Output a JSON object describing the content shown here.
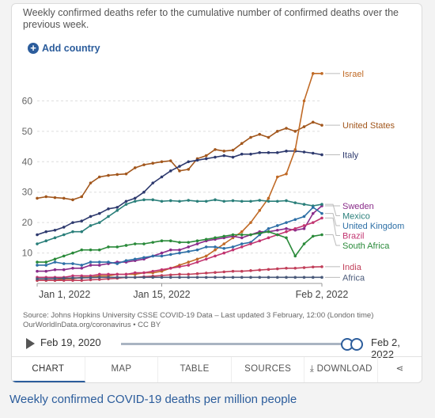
{
  "intro_text": "Weekly confirmed deaths refer to the cumulative number of confirmed deaths over the previous week.",
  "add_country_label": "Add country",
  "source_text": "Source: Johns Hopkins University CSSE COVID-19 Data – Last updated 3 February, 12:00 (London time)",
  "source_url": "OurWorldInData.org/coronavirus • CC BY",
  "timeline": {
    "start_label": "Feb 19, 2020",
    "end_label": "Feb 2, 2022"
  },
  "tabs": [
    {
      "label": "CHART",
      "active": true
    },
    {
      "label": "MAP"
    },
    {
      "label": "TABLE"
    },
    {
      "label": "SOURCES"
    },
    {
      "label": "DOWNLOAD"
    },
    {
      "label": ""
    }
  ],
  "bottom_title": "Weekly confirmed COVID-19 deaths per million people",
  "chart_data": {
    "type": "line",
    "title": "",
    "xlabel": "",
    "ylabel": "",
    "ylim": [
      0,
      70
    ],
    "yticks": [
      10,
      20,
      30,
      40,
      50,
      60
    ],
    "grid": true,
    "x": [
      "2022-01-01",
      "2022-01-02",
      "2022-01-03",
      "2022-01-04",
      "2022-01-05",
      "2022-01-06",
      "2022-01-07",
      "2022-01-08",
      "2022-01-09",
      "2022-01-10",
      "2022-01-11",
      "2022-01-12",
      "2022-01-13",
      "2022-01-14",
      "2022-01-15",
      "2022-01-16",
      "2022-01-17",
      "2022-01-18",
      "2022-01-19",
      "2022-01-20",
      "2022-01-21",
      "2022-01-22",
      "2022-01-23",
      "2022-01-24",
      "2022-01-25",
      "2022-01-26",
      "2022-01-27",
      "2022-01-28",
      "2022-01-29",
      "2022-01-30",
      "2022-01-31",
      "2022-02-01",
      "2022-02-02"
    ],
    "xtick_labels": [
      {
        "date": "2022-01-01",
        "label": "Jan 1, 2022"
      },
      {
        "date": "2022-01-15",
        "label": "Jan 15, 2022"
      },
      {
        "date": "2022-02-02",
        "label": "Feb 2, 2022"
      }
    ],
    "series": [
      {
        "name": "United States",
        "color": "#a2571d",
        "values": [
          28,
          28.5,
          28.2,
          28,
          27.5,
          28.5,
          33,
          35,
          35.5,
          35.8,
          36,
          38,
          39,
          39.5,
          40,
          40.3,
          37,
          37.5,
          41,
          42,
          44,
          43.5,
          43.8,
          46,
          48,
          49,
          48,
          50,
          51,
          50,
          51.5,
          53,
          52
        ]
      },
      {
        "name": "Italy",
        "color": "#2e3a6e",
        "values": [
          16,
          17,
          17.5,
          18.5,
          20,
          20.5,
          22,
          23,
          24.5,
          25,
          27,
          28,
          30,
          33,
          35,
          37,
          38.5,
          40,
          40.5,
          41,
          41.5,
          42,
          41.5,
          42.5,
          42.5,
          43,
          43,
          43,
          43.5,
          43.5,
          43.2,
          42.8,
          42.3
        ]
      },
      {
        "name": "Israel",
        "color": "#c06a26",
        "values": [
          1,
          1,
          1,
          1.5,
          1.5,
          2,
          2,
          2.5,
          2.5,
          3,
          3,
          3,
          3.5,
          3.5,
          4,
          5,
          6,
          7,
          8,
          9,
          11,
          13,
          15,
          17,
          20,
          24,
          28,
          35,
          36,
          44,
          60,
          69,
          69
        ]
      },
      {
        "name": "Sweden",
        "color": "#8a2c8a",
        "values": [
          4,
          4,
          4.5,
          4.5,
          5,
          5,
          6,
          6,
          6.5,
          7,
          7,
          7.5,
          8,
          9,
          10,
          11,
          11,
          12,
          13,
          14,
          14.5,
          15,
          15.5,
          15,
          16,
          17,
          17,
          17.5,
          18,
          17.5,
          18,
          23,
          25.5
        ]
      },
      {
        "name": "Mexico",
        "color": "#2a7f7a",
        "values": [
          13,
          14,
          15,
          16,
          17,
          17,
          19,
          20,
          22,
          24,
          26,
          27,
          27.5,
          27.5,
          27,
          27.2,
          27,
          27.3,
          27,
          27,
          27.5,
          27,
          27.2,
          27,
          27,
          27.3,
          27,
          27,
          27.2,
          26.5,
          26,
          25.5,
          26
        ]
      },
      {
        "name": "United Kingdom",
        "color": "#2d6fa6",
        "values": [
          6,
          6,
          7,
          6.5,
          6.5,
          6,
          7,
          7,
          7,
          6.5,
          7.5,
          8,
          8.5,
          9,
          9,
          9.5,
          10,
          10.5,
          11,
          12,
          12,
          11.5,
          12,
          13,
          13.5,
          16,
          18,
          19,
          20,
          21,
          22,
          25,
          23
        ]
      },
      {
        "name": "Brazil",
        "color": "#c23470",
        "values": [
          2,
          2,
          2,
          2,
          2.5,
          2.5,
          2.5,
          3,
          3,
          3,
          3,
          3.5,
          3.5,
          4,
          4.5,
          5,
          5.5,
          6,
          7,
          8,
          9,
          10,
          11,
          12,
          13,
          14,
          15,
          16,
          17,
          18,
          19,
          20,
          21.5
        ]
      },
      {
        "name": "South Africa",
        "color": "#2a8a3a",
        "values": [
          7,
          7,
          8,
          9,
          10,
          11,
          11,
          11,
          12,
          12,
          12.5,
          13,
          13,
          13.5,
          14,
          14,
          13.5,
          13.5,
          14,
          14.5,
          15,
          15.5,
          16,
          16,
          16,
          16.5,
          17,
          16,
          15,
          9,
          13,
          15.5,
          16
        ]
      },
      {
        "name": "India",
        "color": "#c13f5a",
        "values": [
          1,
          1,
          1,
          1,
          1,
          1,
          1.2,
          1.3,
          1.5,
          1.7,
          2,
          2,
          2.2,
          2.4,
          2.6,
          2.8,
          3,
          3,
          3.2,
          3.4,
          3.6,
          3.8,
          4,
          4,
          4.2,
          4.4,
          4.6,
          4.8,
          5,
          5,
          5.2,
          5.4,
          5.5
        ]
      },
      {
        "name": "Africa",
        "color": "#4a5a7a",
        "values": [
          1.5,
          1.5,
          1.6,
          1.7,
          1.8,
          1.8,
          1.9,
          2,
          2,
          2,
          2,
          2,
          2,
          2,
          2,
          2,
          2,
          2,
          2,
          2,
          2,
          2,
          2,
          2,
          2,
          2,
          2,
          2,
          2,
          2,
          2,
          2,
          2
        ]
      }
    ],
    "legend_order": [
      "Israel",
      "United States",
      "Italy",
      "Sweden",
      "Mexico",
      "United Kingdom",
      "Brazil",
      "South Africa",
      "India",
      "Africa"
    ]
  }
}
